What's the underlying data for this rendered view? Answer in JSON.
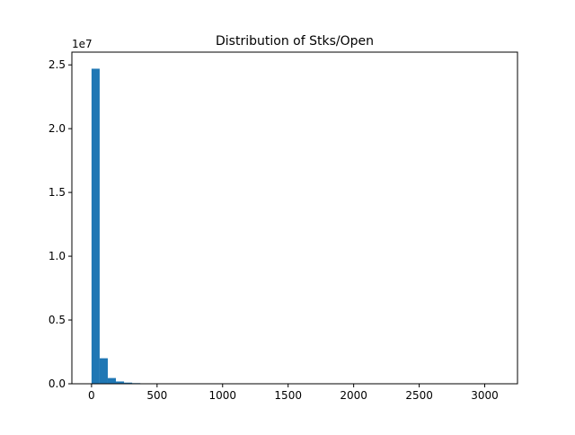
{
  "chart_data": {
    "type": "bar",
    "title": "Distribution of Stks/Open",
    "xlabel": "",
    "ylabel": "",
    "y_multiplier_label": "1e7",
    "xlim": [
      -150,
      3250
    ],
    "ylim": [
      0,
      26000000
    ],
    "x_ticks": [
      0,
      500,
      1000,
      1500,
      2000,
      2500,
      3000
    ],
    "x_tick_labels": [
      "0",
      "500",
      "1000",
      "1500",
      "2000",
      "2500",
      "3000"
    ],
    "y_ticks": [
      0,
      5000000,
      10000000,
      15000000,
      20000000,
      25000000
    ],
    "y_tick_labels": [
      "0.0",
      "0.5",
      "1.0",
      "1.5",
      "2.0",
      "2.5"
    ],
    "bin_width": 62,
    "bins": [
      {
        "x0": 0,
        "x1": 62,
        "count": 24700000
      },
      {
        "x0": 62,
        "x1": 124,
        "count": 2000000
      },
      {
        "x0": 124,
        "x1": 186,
        "count": 450000
      },
      {
        "x0": 186,
        "x1": 248,
        "count": 180000
      },
      {
        "x0": 248,
        "x1": 310,
        "count": 90000
      },
      {
        "x0": 310,
        "x1": 372,
        "count": 50000
      },
      {
        "x0": 372,
        "x1": 434,
        "count": 25000
      },
      {
        "x0": 434,
        "x1": 496,
        "count": 12000
      },
      {
        "x0": 496,
        "x1": 558,
        "count": 6000
      },
      {
        "x0": 558,
        "x1": 620,
        "count": 3000
      }
    ],
    "grid": false,
    "bar_color": "#1f77b4"
  }
}
